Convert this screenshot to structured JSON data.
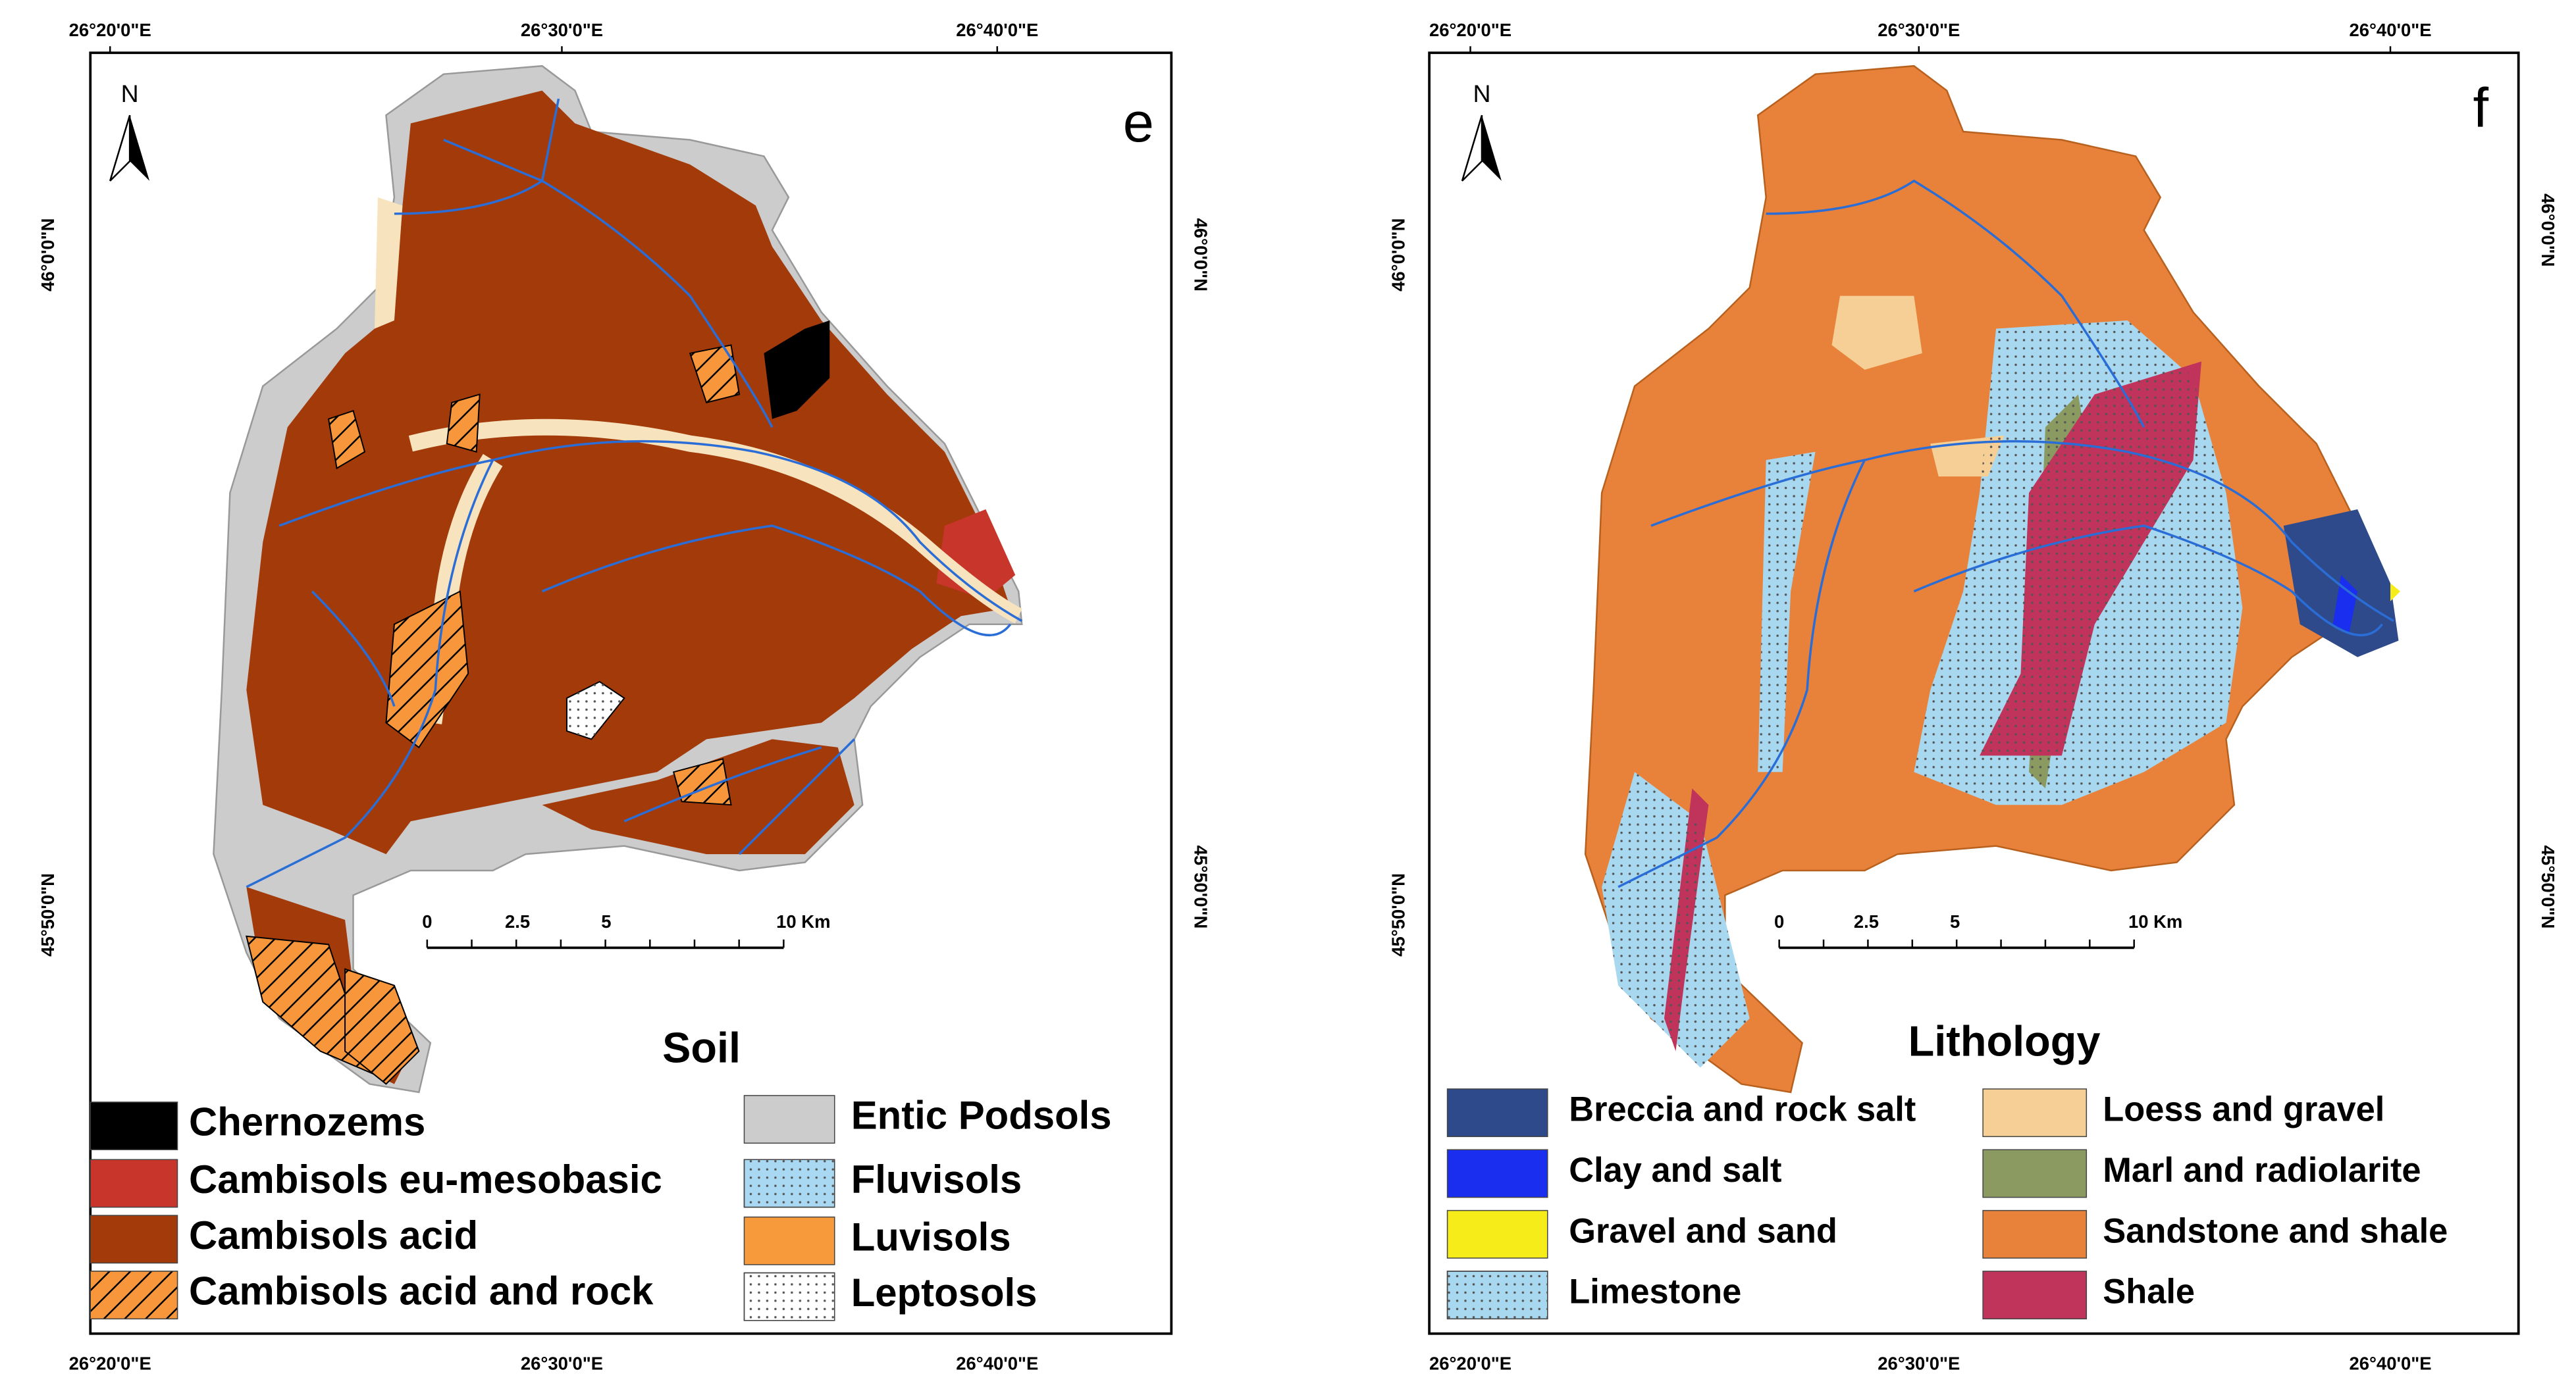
{
  "panels": [
    {
      "letter": "e",
      "title": "Soil",
      "north": "N",
      "top_labels": [
        "26°20'0\"E",
        "26°30'0\"E",
        "26°40'0\"E"
      ],
      "bottom_labels": [
        "26°20'0\"E",
        "26°30'0\"E",
        "26°40'0\"E"
      ],
      "left_labels": [
        "46°0'0\"N",
        "45°50'0\"N"
      ],
      "right_labels": [
        "46°0'0\"N",
        "45°50'0\"N"
      ],
      "scale_labels": [
        "0",
        "2.5",
        "5",
        "10 Km"
      ],
      "legend": [
        {
          "label": "Chernozems",
          "color": "#000000"
        },
        {
          "label": "Cambisols eu-mesobasic",
          "color": "#c8352a"
        },
        {
          "label": "Cambisols acid",
          "color": "#a33a0a"
        },
        {
          "label": "Cambisols acid and rock",
          "color": "#f7963a",
          "pattern": "hatch"
        },
        {
          "label": "Entic Podsols",
          "color": "#cccccc"
        },
        {
          "label": "Fluvisols",
          "color": "#a9d9f2",
          "pattern": "dots"
        },
        {
          "label": "Luvisols",
          "color": "#f79a3c"
        },
        {
          "label": "Leptosols",
          "color": "#ffffff",
          "pattern": "dots"
        }
      ]
    },
    {
      "letter": "f",
      "title": "Lithology",
      "north": "N",
      "top_labels": [
        "26°20'0\"E",
        "26°30'0\"E",
        "26°40'0\"E"
      ],
      "bottom_labels": [
        "26°20'0\"E",
        "26°30'0\"E",
        "26°40'0\"E"
      ],
      "left_labels": [
        "46°0'0\"N",
        "45°50'0\"N"
      ],
      "right_labels": [
        "46°0'0\"N",
        "45°50'0\"N"
      ],
      "scale_labels": [
        "0",
        "2.5",
        "5",
        "10 Km"
      ],
      "legend": [
        {
          "label": "Breccia and rock salt",
          "color": "#2e4a8a"
        },
        {
          "label": "Clay and salt",
          "color": "#1a2ef0"
        },
        {
          "label": "Gravel and sand",
          "color": "#f5ec1a"
        },
        {
          "label": "Limestone",
          "color": "#a8d8ef",
          "pattern": "dots"
        },
        {
          "label": "Loess and gravel",
          "color": "#f5cf95"
        },
        {
          "label": "Marl and radiolarite",
          "color": "#8a9a60"
        },
        {
          "label": "Sandstone and shale",
          "color": "#e8823a"
        },
        {
          "label": "Shale",
          "color": "#c0335a"
        }
      ]
    }
  ]
}
